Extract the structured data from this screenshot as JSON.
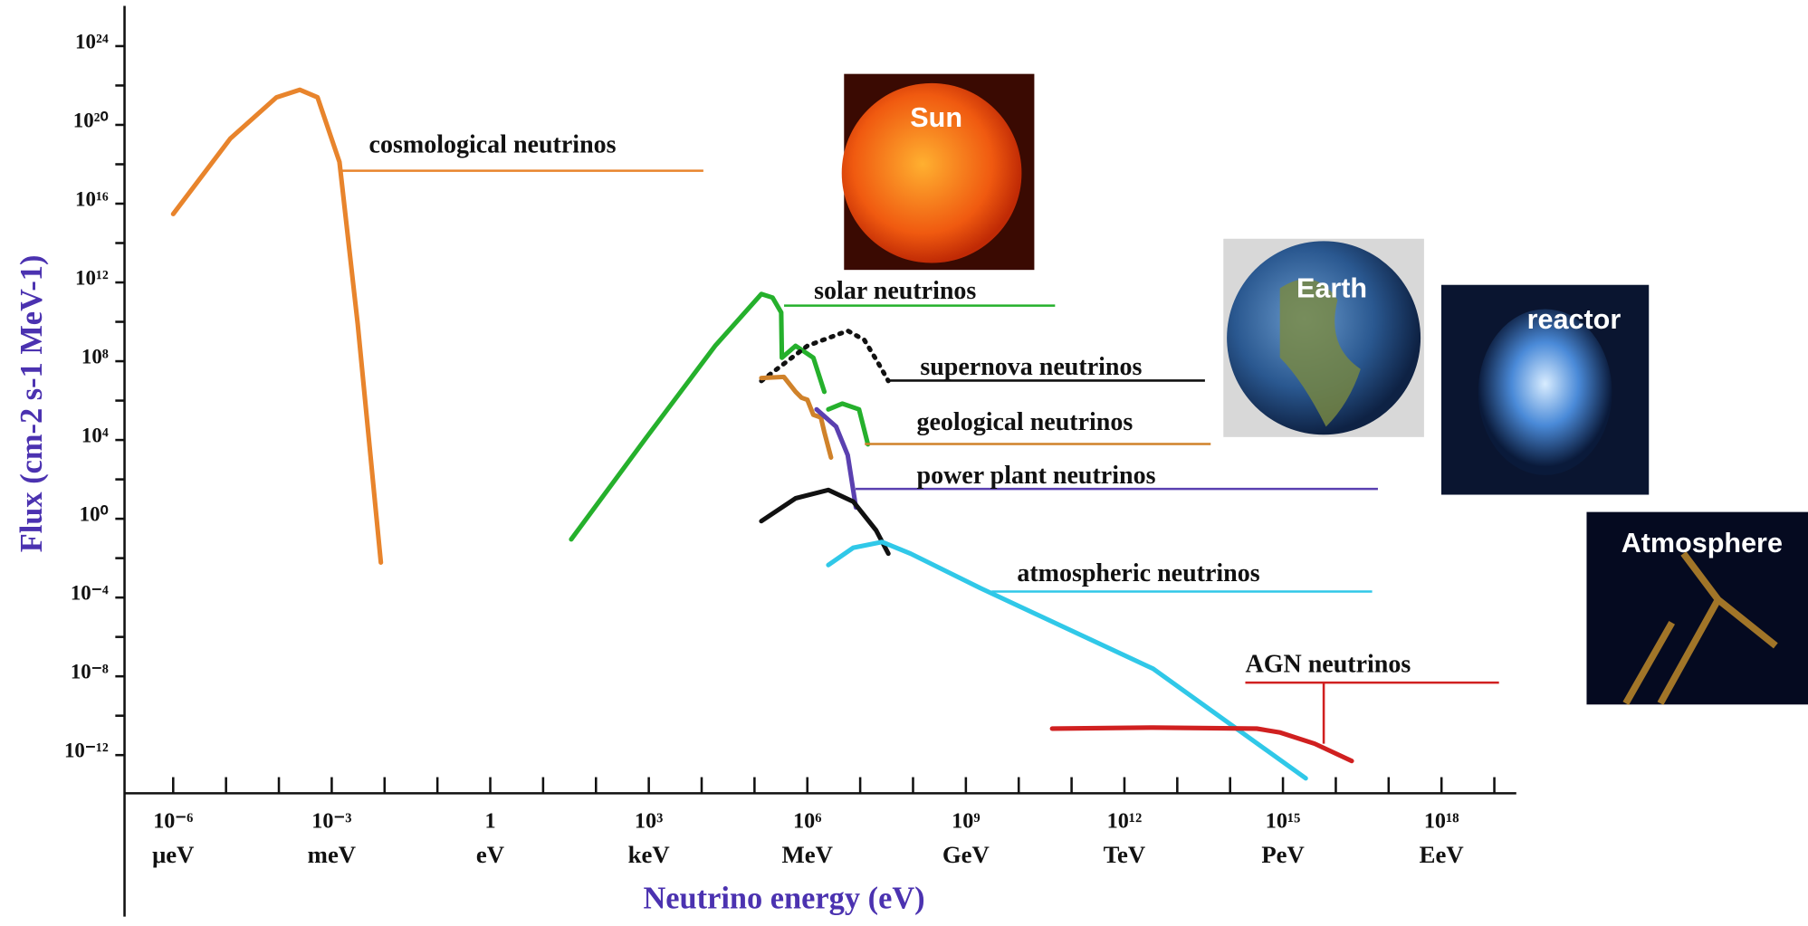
{
  "chart_data": {
    "type": "line",
    "xlabel": "Neutrino energy (eV)",
    "ylabel": "Flux (cm-2 s-1 MeV-1)",
    "xscale": "log",
    "yscale": "log",
    "xlim": [
      1.2e-07,
      2.6e+19
    ],
    "ylim": [
      1.15e-14,
      1.1e+26
    ],
    "xticks": [
      {
        "value": 1e-06,
        "label": "10⁻⁶"
      },
      {
        "value": 0.001,
        "label": "10⁻³"
      },
      1,
      {
        "value": 1000.0,
        "label": "10³"
      },
      {
        "value": 1000000.0,
        "label": "10⁶"
      },
      {
        "value": 1000000000.0,
        "label": "10⁹"
      },
      {
        "value": 1000000000000.0,
        "label": "10¹²"
      },
      {
        "value": 1000000000000000.0,
        "label": "10¹⁵"
      },
      {
        "value": 1e+18,
        "label": "10¹⁸"
      }
    ],
    "xtick_units": [
      "μeV",
      "meV",
      "eV",
      "keV",
      "MeV",
      "GeV",
      "TeV",
      "PeV",
      "EeV"
    ],
    "xminorticks": [
      1e-05,
      0.0001,
      0.01,
      0.1,
      10,
      100,
      10000.0,
      100000.0,
      10000000.0,
      100000000.0,
      10000000000.0,
      100000000000.0,
      10000000000000.0,
      100000000000000.0,
      1e+16,
      1e+17,
      1e+19
    ],
    "yticks": [
      {
        "value": 1e+24,
        "label": "10²⁴"
      },
      {
        "value": 1e+20,
        "label": "10²⁰"
      },
      {
        "value": 1e+16,
        "label": "10¹⁶"
      },
      {
        "value": 1000000000000.0,
        "label": "10¹²"
      },
      {
        "value": 100000000.0,
        "label": "10⁸"
      },
      {
        "value": 10000.0,
        "label": "10⁴"
      },
      {
        "value": 1,
        "label": "10⁰"
      },
      {
        "value": 0.0001,
        "label": "10⁻⁴"
      },
      {
        "value": 1e-08,
        "label": "10⁻⁸"
      },
      {
        "value": 1e-12,
        "label": "10⁻¹²"
      }
    ],
    "yminorticks": [
      1e+22,
      1e+18,
      100000000000000.0,
      10000000000.0,
      1000000.0,
      100,
      0.01,
      1e-06,
      1e-10
    ],
    "series": [
      {
        "name": "cosmological neutrinos",
        "color": "#e8842c",
        "x": [
          1e-06,
          1.2e-05,
          9e-05,
          0.00025,
          0.00054,
          0.0014,
          0.0031,
          0.0085
        ],
        "values": [
          3000000000000000.0,
          2e+19,
          2.5e+21,
          6e+21,
          2.5e+21,
          1.3e+18,
          8000000000.0,
          0.006
        ]
      },
      {
        "name": "solar neutrinos",
        "color": "#25b02c",
        "x": [
          34,
          890,
          18000.0,
          135000.0,
          220000.0,
          320000.0,
          330000.0,
          600000.0,
          1300000.0,
          2100000.0,
          2300000.0,
          2500000.0,
          4600000.0,
          9500000.0,
          14000000.0
        ],
        "values": [
          0.09,
          13000.0,
          600000000.0,
          260000000000.0,
          170000000000.0,
          30000000000.0,
          150000000.0,
          600000000.0,
          150000000.0,
          2800000.0,
          null,
          360000.0,
          700000.0,
          360000.0,
          6000.0
        ]
      },
      {
        "name": "supernova neutrinos",
        "color": "#111111",
        "linestyle": "dotted",
        "x": [
          135000.0,
          1000000.0,
          5800000.0,
          12000000.0,
          22000000.0,
          34000000.0
        ],
        "values": [
          10000000.0,
          600000000.0,
          3500000000.0,
          1200000000.0,
          80000000.0,
          10000000.0
        ]
      },
      {
        "name": "geological neutrinos",
        "color": "#d0822a",
        "x": [
          135000.0,
          360000.0,
          600000.0,
          780000.0,
          1000000.0,
          1300000.0,
          1800000.0,
          2100000.0,
          2800000.0
        ],
        "values": [
          14000000.0,
          16000000.0,
          2800000.0,
          1400000.0,
          1100000.0,
          190000.0,
          140000.0,
          25000.0,
          1300.0
        ]
      },
      {
        "name": "power plant neutrinos",
        "color": "#5a40b0",
        "x": [
          1500000.0,
          3500000.0,
          5800000.0,
          8300000.0
        ],
        "values": [
          360000.0,
          48000.0,
          1700.0,
          3.8
        ]
      },
      {
        "color": "#111111",
        "x": [
          135000.0,
          600000.0,
          2500000.0,
          7400000.0,
          20000000.0,
          34000000.0
        ],
        "values": [
          0.76,
          11,
          29,
          7.4,
          0.26,
          0.017
        ]
      },
      {
        "name": "atmospheric neutrinos",
        "color": "#30c8e8",
        "x": [
          2500000.0,
          7400000.0,
          26000000.0,
          90000000.0,
          1900000000.0,
          3500000000000.0,
          2700000000000000.0
        ],
        "values": [
          0.0045,
          0.034,
          0.066,
          0.017,
          0.0003,
          2.4e-08,
          6.6e-14
        ]
      },
      {
        "name": "AGN neutrinos",
        "color": "#d02020",
        "x": [
          43000000000.0,
          3500000000000.0,
          320000000000000.0,
          890000000000000.0,
          4000000000000000.0,
          2e+16
        ],
        "values": [
          2.2e-11,
          2.5e-11,
          2.2e-11,
          1.4e-11,
          3.8e-12,
          5e-13
        ]
      }
    ]
  },
  "images": [
    {
      "label": "Sun"
    },
    {
      "label": "Earth"
    },
    {
      "label": "reactor"
    },
    {
      "label": "Atmosphere"
    }
  ]
}
